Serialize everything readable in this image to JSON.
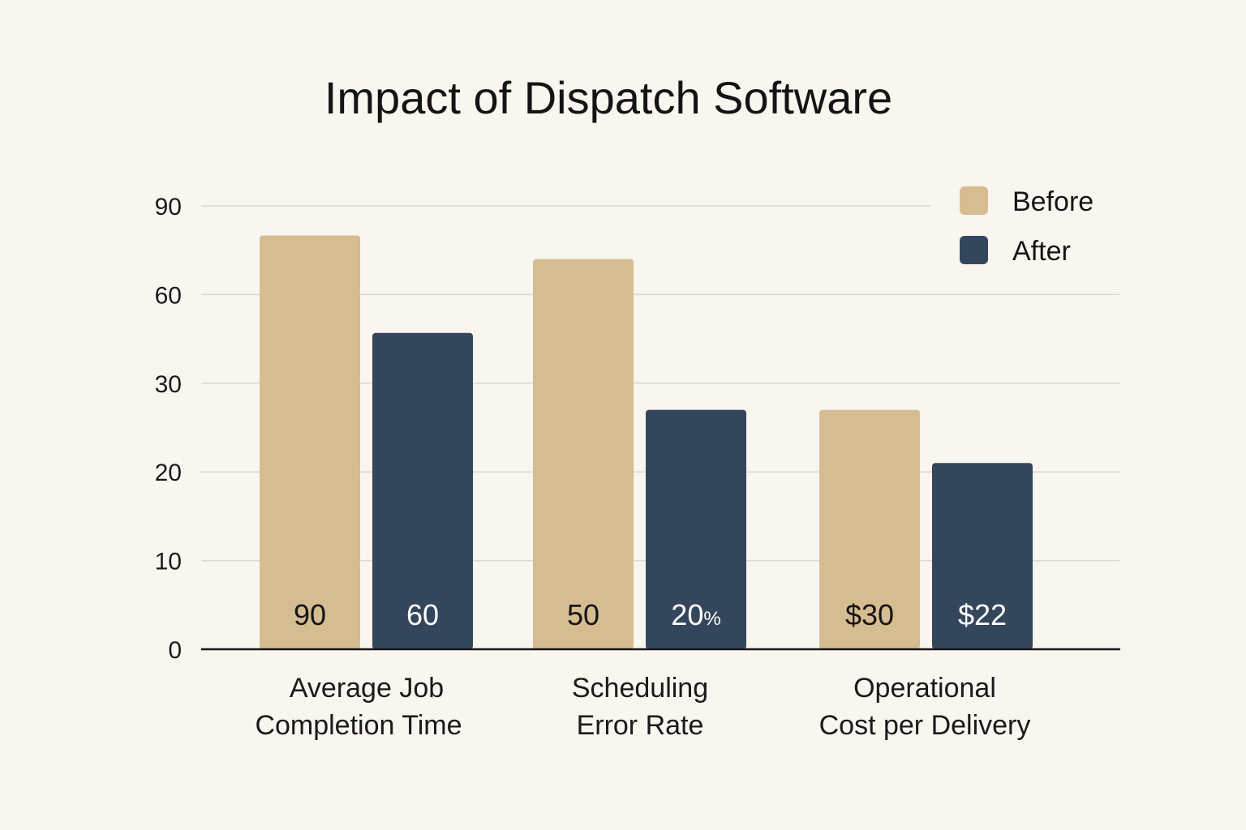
{
  "chart_data": {
    "type": "bar",
    "title": "Impact of Dispatch Software",
    "xlabel": "",
    "ylabel": "",
    "y_ticks": [
      "0",
      "10",
      "20",
      "30",
      "60",
      "90"
    ],
    "grid": true,
    "legend_position": "top-right",
    "categories": [
      [
        "Average Job",
        "Completion Time"
      ],
      [
        "Scheduling",
        "Error Rate"
      ],
      [
        "Operational",
        "Cost per Delivery"
      ]
    ],
    "series": [
      {
        "name": "Before",
        "color": "#d6bc91",
        "values": [
          90,
          50,
          30
        ],
        "labels": [
          "90",
          "50",
          "$30"
        ],
        "label_color": "#151515",
        "axis_position": [
          80,
          72,
          27
        ]
      },
      {
        "name": "After",
        "color": "#34465b",
        "values": [
          60,
          20,
          22
        ],
        "labels": [
          "60",
          "20%",
          "$22"
        ],
        "label_color": "#ffffff",
        "axis_position": [
          47,
          27,
          21
        ]
      }
    ]
  }
}
